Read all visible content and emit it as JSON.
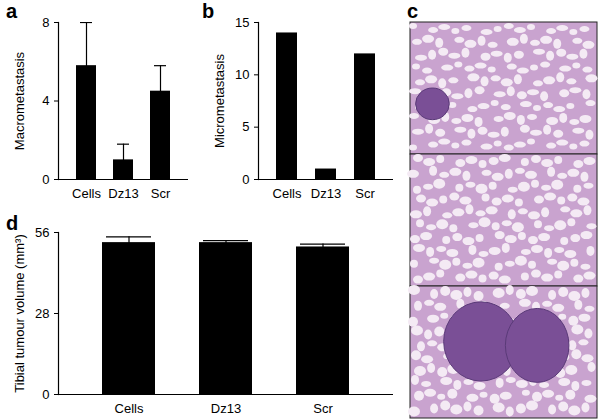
{
  "chart_data": [
    {
      "type": "bar",
      "title": "a",
      "ylabel": "Macrometastasis",
      "categories": [
        "Cells",
        "Dz13",
        "Scr"
      ],
      "values": [
        5.8,
        1.0,
        4.5
      ],
      "errors": [
        2.2,
        0.8,
        1.3
      ],
      "color": "#000000",
      "ylim": [
        0,
        8
      ],
      "yticks": [
        0,
        4,
        8
      ]
    },
    {
      "type": "bar",
      "title": "b",
      "ylabel": "Micrometastasis",
      "categories": [
        "Cells",
        "Dz13",
        "Scr"
      ],
      "values": [
        14,
        1,
        12
      ],
      "color": "#000000",
      "ylim": [
        0,
        15
      ],
      "yticks": [
        0,
        5,
        10,
        15
      ]
    },
    {
      "type": "image",
      "title": "c"
    },
    {
      "type": "bar",
      "title": "d",
      "ylabel": "Tibial tumour volume (mm³)",
      "categories": [
        "Cells",
        "Dz13",
        "Scr"
      ],
      "values": [
        52.5,
        52.5,
        51.0
      ],
      "errors": [
        2.0,
        0.7,
        1.0
      ],
      "color": "#000000",
      "ylim": [
        0,
        56
      ],
      "yticks": [
        0,
        28,
        56
      ]
    }
  ]
}
